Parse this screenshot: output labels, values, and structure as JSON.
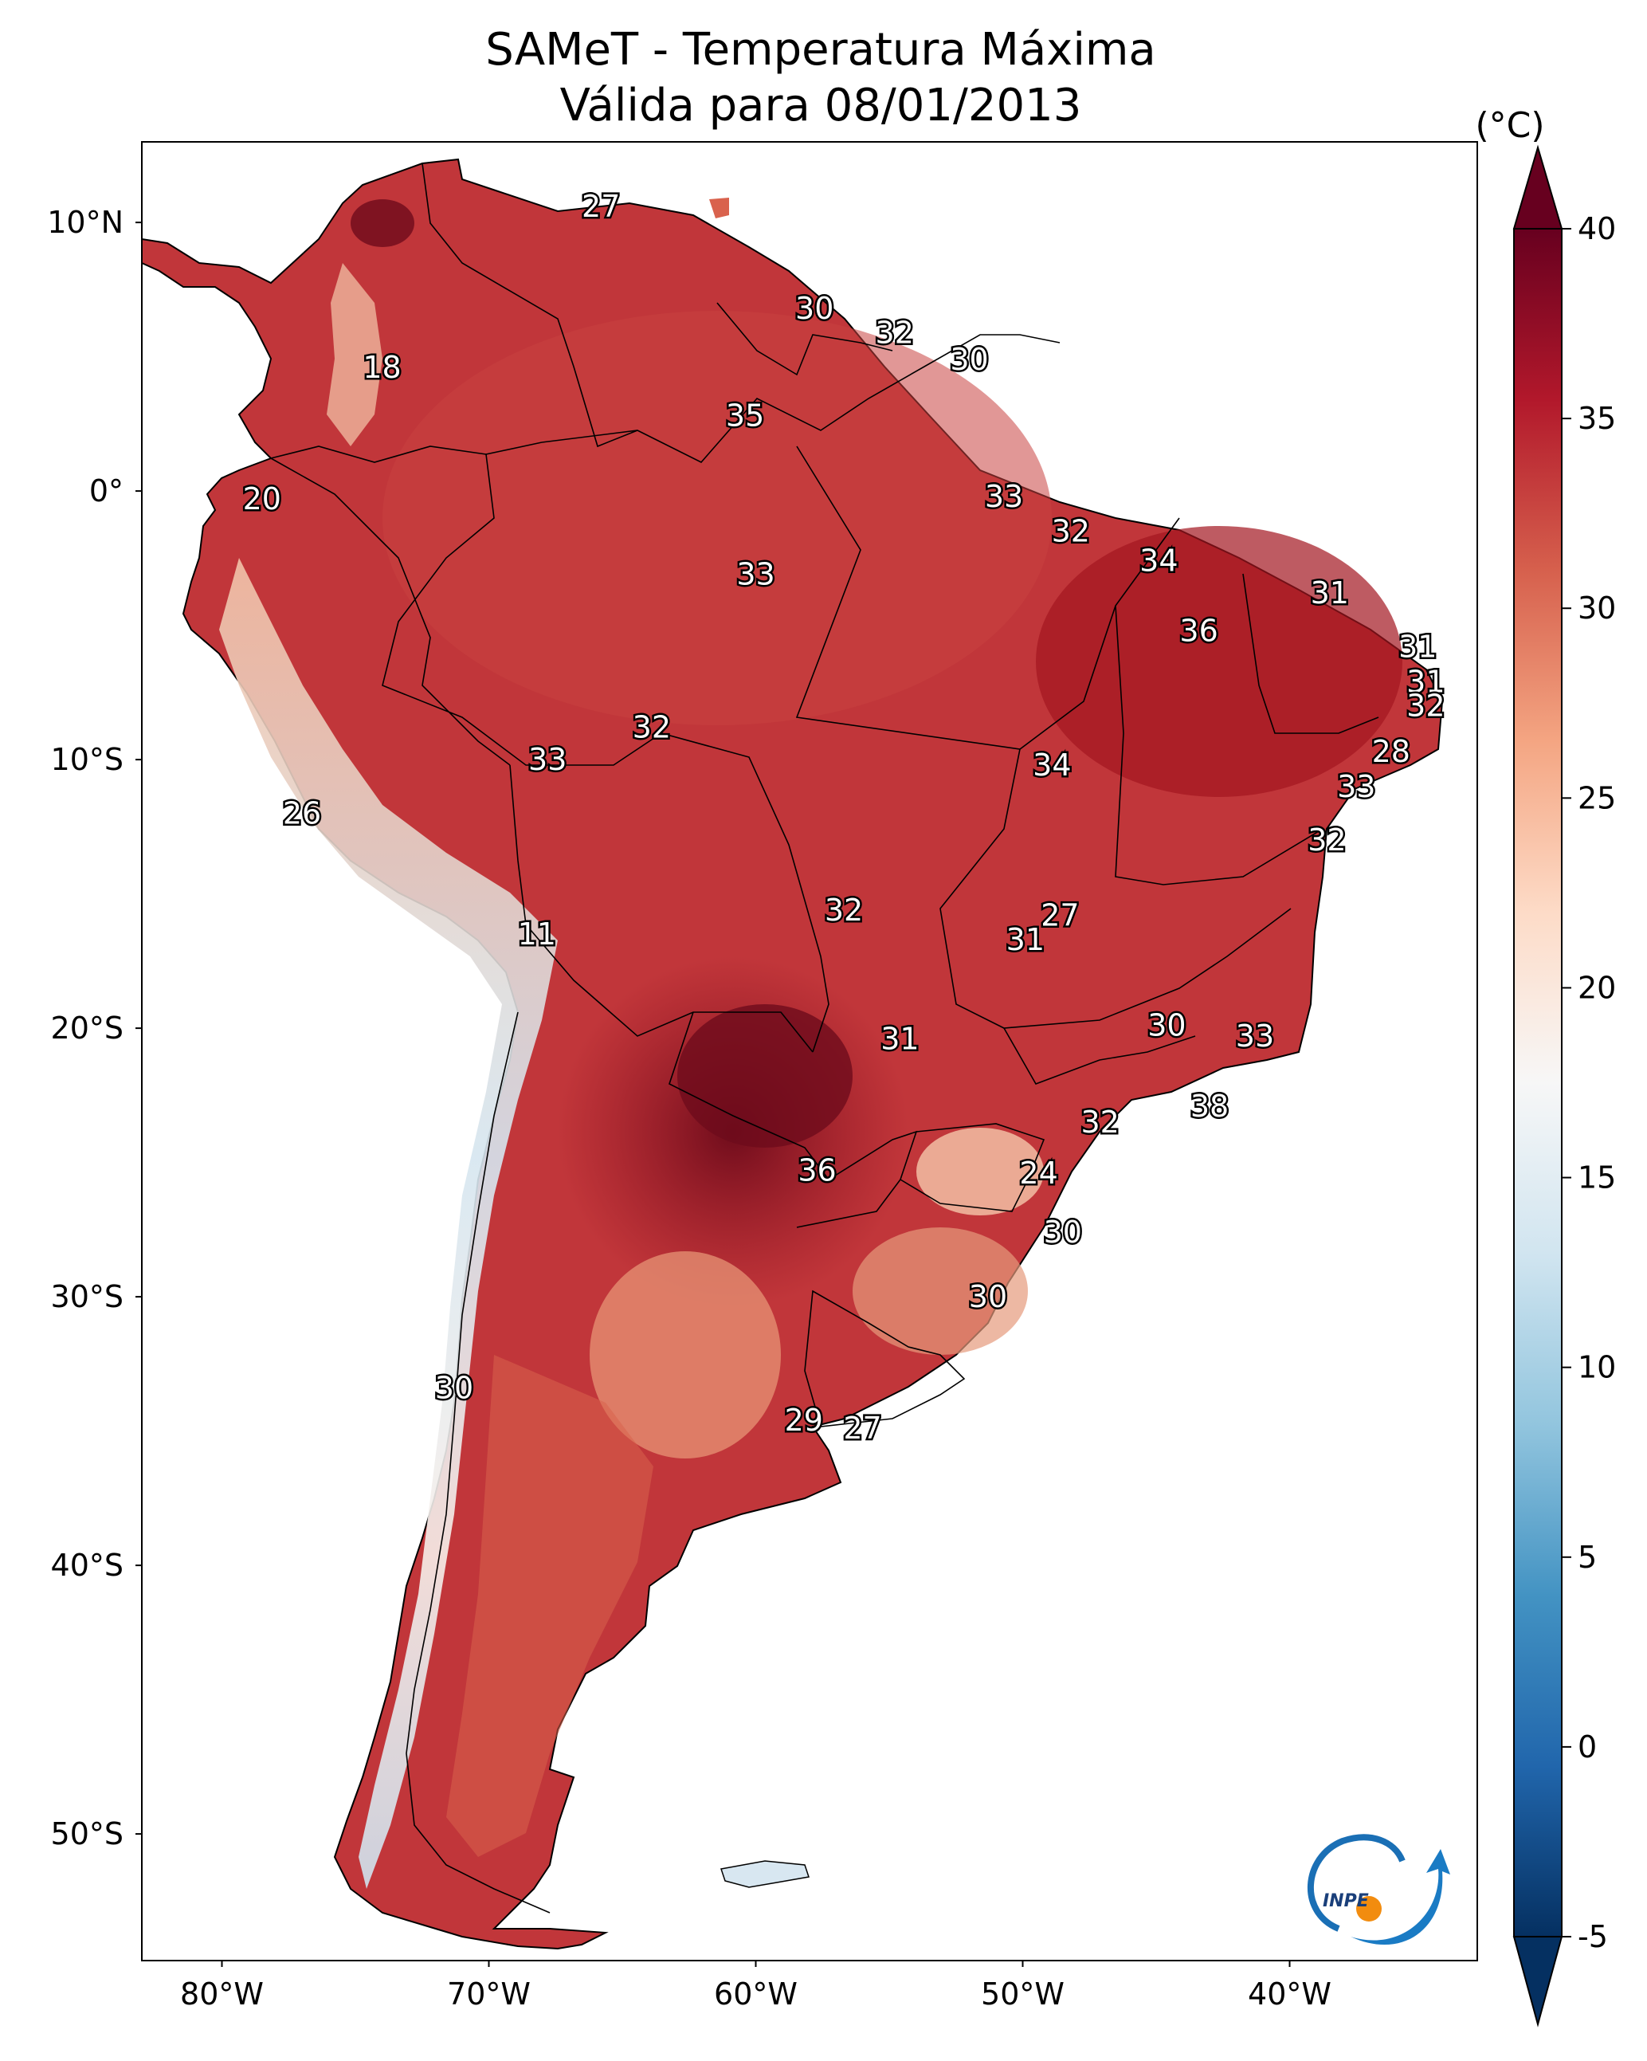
{
  "title": {
    "line1": "SAMeT - Temperatura Máxima",
    "line2": "Válida para 08/01/2013"
  },
  "map": {
    "lat_ticks": [
      "10°N",
      "0°",
      "10°S",
      "20°S",
      "30°S",
      "40°S",
      "50°S"
    ],
    "lon_ticks": [
      "80°W",
      "70°W",
      "60°W",
      "50°W",
      "40°W"
    ],
    "labels": [
      {
        "text": "27",
        "lon": -65.8,
        "lat": 10.6
      },
      {
        "text": "18",
        "lon": -74.0,
        "lat": 4.6
      },
      {
        "text": "30",
        "lon": -57.8,
        "lat": 6.8
      },
      {
        "text": "32",
        "lon": -54.8,
        "lat": 5.9
      },
      {
        "text": "30",
        "lon": -52.0,
        "lat": 4.9
      },
      {
        "text": "35",
        "lon": -60.4,
        "lat": 2.8
      },
      {
        "text": "20",
        "lon": -78.5,
        "lat": -0.3
      },
      {
        "text": "33",
        "lon": -50.7,
        "lat": -0.2
      },
      {
        "text": "32",
        "lon": -48.2,
        "lat": -1.5
      },
      {
        "text": "34",
        "lon": -44.9,
        "lat": -2.6
      },
      {
        "text": "33",
        "lon": -60.0,
        "lat": -3.1
      },
      {
        "text": "31",
        "lon": -38.5,
        "lat": -3.8
      },
      {
        "text": "36",
        "lon": -43.4,
        "lat": -5.2
      },
      {
        "text": "31",
        "lon": -35.2,
        "lat": -5.8
      },
      {
        "text": "31",
        "lon": -34.9,
        "lat": -7.1
      },
      {
        "text": "32",
        "lon": -34.9,
        "lat": -8.0
      },
      {
        "text": "32",
        "lon": -63.9,
        "lat": -8.8
      },
      {
        "text": "28",
        "lon": -36.2,
        "lat": -9.7
      },
      {
        "text": "33",
        "lon": -67.8,
        "lat": -10.0
      },
      {
        "text": "34",
        "lon": -48.9,
        "lat": -10.2
      },
      {
        "text": "33",
        "lon": -37.5,
        "lat": -11.0
      },
      {
        "text": "26",
        "lon": -77.0,
        "lat": -12.0
      },
      {
        "text": "32",
        "lon": -38.6,
        "lat": -13.0
      },
      {
        "text": "32",
        "lon": -56.7,
        "lat": -15.6
      },
      {
        "text": "27",
        "lon": -48.6,
        "lat": -15.8
      },
      {
        "text": "11",
        "lon": -68.2,
        "lat": -16.5
      },
      {
        "text": "31",
        "lon": -49.9,
        "lat": -16.7
      },
      {
        "text": "30",
        "lon": -44.6,
        "lat": -19.9
      },
      {
        "text": "33",
        "lon": -41.3,
        "lat": -20.3
      },
      {
        "text": "31",
        "lon": -54.6,
        "lat": -20.4
      },
      {
        "text": "38",
        "lon": -43.0,
        "lat": -22.9
      },
      {
        "text": "32",
        "lon": -47.1,
        "lat": -23.5
      },
      {
        "text": "36",
        "lon": -57.7,
        "lat": -25.3
      },
      {
        "text": "24",
        "lon": -49.4,
        "lat": -25.4
      },
      {
        "text": "30",
        "lon": -48.5,
        "lat": -27.6
      },
      {
        "text": "30",
        "lon": -51.3,
        "lat": -30.0
      },
      {
        "text": "30",
        "lon": -71.3,
        "lat": -33.4
      },
      {
        "text": "29",
        "lon": -58.2,
        "lat": -34.6
      },
      {
        "text": "27",
        "lon": -56.0,
        "lat": -34.9
      }
    ]
  },
  "colorbar": {
    "unit": "(°C)",
    "min": -5,
    "max": 40,
    "ticks": [
      "40",
      "35",
      "30",
      "25",
      "20",
      "15",
      "10",
      "5",
      "0",
      "-5"
    ],
    "stops": [
      "#053061",
      "#2166ac",
      "#4393c3",
      "#92c5de",
      "#d1e5f0",
      "#f7f7f7",
      "#fddbc7",
      "#f4a582",
      "#d6604d",
      "#b2182b",
      "#67001f"
    ]
  },
  "logo": {
    "text": "INPE"
  }
}
